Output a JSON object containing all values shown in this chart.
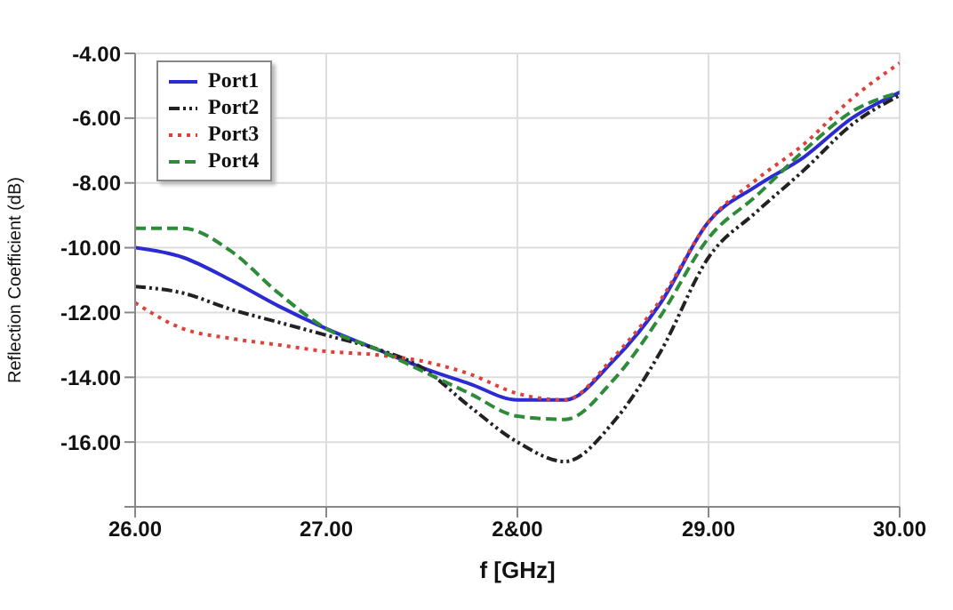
{
  "chart_data": {
    "type": "line",
    "xlabel": "f [GHz]",
    "ylabel": "Reflection Coefficient (dB)",
    "x": [
      26,
      26.25,
      26.5,
      26.75,
      27,
      27.25,
      27.5,
      27.75,
      28,
      28.25,
      28.5,
      28.75,
      29,
      29.25,
      29.5,
      29.75,
      30
    ],
    "series": [
      {
        "name": "Port1",
        "color": "#2b2bd1",
        "line_style": "solid",
        "values": [
          -10.0,
          -10.3,
          -11.0,
          -11.8,
          -12.5,
          -13.1,
          -13.7,
          -14.2,
          -14.7,
          -14.7,
          -13.5,
          -11.7,
          -9.2,
          -8.1,
          -7.2,
          -6.0,
          -5.2
        ]
      },
      {
        "name": "Port2",
        "color": "#222222",
        "line_style": "dashdot",
        "values": [
          -11.2,
          -11.4,
          -11.9,
          -12.3,
          -12.7,
          -13.1,
          -13.7,
          -14.9,
          -16.0,
          -16.6,
          -15.4,
          -13.2,
          -10.3,
          -8.9,
          -7.6,
          -6.2,
          -5.3
        ]
      },
      {
        "name": "Port3",
        "color": "#e0403a",
        "line_style": "dotted",
        "values": [
          -11.7,
          -12.5,
          -12.8,
          -13.0,
          -13.2,
          -13.3,
          -13.5,
          -13.9,
          -14.5,
          -14.7,
          -13.4,
          -11.6,
          -9.2,
          -7.9,
          -6.8,
          -5.4,
          -4.3
        ]
      },
      {
        "name": "Port4",
        "color": "#2e8b3a",
        "line_style": "dashed",
        "values": [
          -9.4,
          -9.4,
          -10.1,
          -11.4,
          -12.5,
          -13.1,
          -13.8,
          -14.5,
          -15.2,
          -15.3,
          -14.1,
          -12.1,
          -9.7,
          -8.4,
          -7.0,
          -5.8,
          -5.2
        ]
      }
    ],
    "xlim": [
      26,
      30
    ],
    "xticks": [
      {
        "value": 26,
        "label": "26.00"
      },
      {
        "value": 27,
        "label": "27.00"
      },
      {
        "value": 28,
        "label": "2&00"
      },
      {
        "value": 29,
        "label": "29.00"
      },
      {
        "value": 30,
        "label": "30.00"
      }
    ],
    "ylim": [
      -18,
      -4
    ],
    "yticks": [
      {
        "value": -18,
        "label": null
      },
      {
        "value": -16,
        "label": "-16.00"
      },
      {
        "value": -14,
        "label": "-14.00"
      },
      {
        "value": -12,
        "label": "-12.00"
      },
      {
        "value": -10,
        "label": "-10.00"
      },
      {
        "value": -8,
        "label": "-8.00"
      },
      {
        "value": -6,
        "label": "-6.00"
      },
      {
        "value": -4,
        "label": "-4.00"
      }
    ],
    "grid": true,
    "legend": "top left",
    "marker": "none"
  }
}
